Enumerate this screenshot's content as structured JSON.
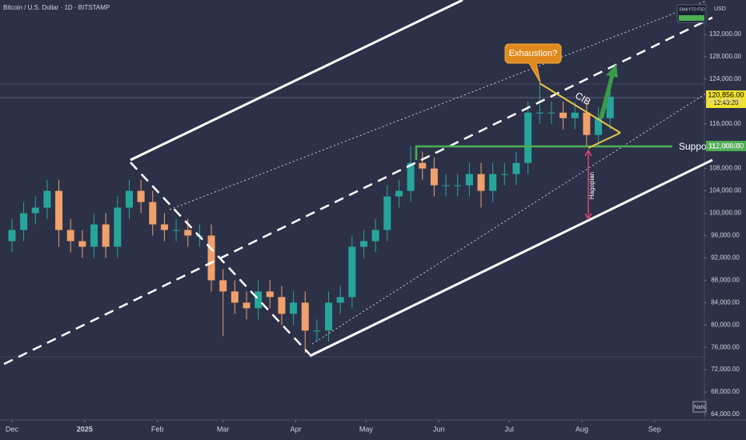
{
  "chart_data": {
    "type": "candlestick",
    "title": "Bitcoin / U.S. Dollar · 1D · BITSTAMP",
    "currency": "USD",
    "indicators": [
      "EMA",
      "YTD",
      "F5D"
    ],
    "last_price_label": "12­0,856.00",
    "countdown": "12:43:20",
    "support_price_label": "112,000.00",
    "nan_label": "NaN",
    "annotations": {
      "exhaustion": "Exhaustion?",
      "cib": "CIB",
      "support": "Support",
      "hagopian": "Hagopian"
    },
    "x": [
      0,
      5,
      10,
      15,
      20,
      25,
      30,
      35,
      40,
      45,
      50,
      55,
      60,
      65,
      70,
      75,
      80,
      85,
      90,
      95,
      100,
      105,
      110,
      115,
      120,
      125,
      130,
      135,
      140,
      145,
      150,
      155,
      160,
      165,
      170,
      175,
      180,
      185,
      190,
      195,
      200,
      205,
      210,
      215,
      220,
      225,
      230,
      235,
      240,
      245,
      250,
      255
    ],
    "open": [
      95000,
      97000,
      100000,
      101000,
      104000,
      97000,
      95000,
      94000,
      98000,
      94000,
      101000,
      104000,
      102000,
      98000,
      97000,
      97000,
      96000,
      96000,
      88000,
      86000,
      84000,
      83000,
      86000,
      85000,
      82000,
      84000,
      79000,
      79000,
      84000,
      85000,
      94000,
      95000,
      97000,
      103000,
      104000,
      109000,
      108000,
      105000,
      105000,
      105000,
      107000,
      104000,
      107000,
      107000,
      109000,
      118000,
      118000,
      118000,
      117000,
      118000,
      114000,
      117000
    ],
    "high": [
      99000,
      102000,
      103000,
      106000,
      106000,
      99000,
      97000,
      100000,
      100000,
      103000,
      106000,
      106000,
      104000,
      100000,
      99000,
      99000,
      98000,
      98000,
      90000,
      88000,
      86000,
      88000,
      88000,
      87000,
      86000,
      86000,
      81000,
      86000,
      87000,
      96000,
      97000,
      99000,
      105000,
      106000,
      112000,
      111000,
      110000,
      107000,
      107000,
      109000,
      109000,
      109000,
      109000,
      111000,
      120000,
      123000,
      120000,
      120000,
      120000,
      120000,
      119000,
      122000
    ],
    "low": [
      93000,
      95000,
      98000,
      99000,
      94000,
      93000,
      92000,
      92000,
      92000,
      92000,
      99000,
      100000,
      96000,
      95000,
      95000,
      94000,
      94000,
      86000,
      78000,
      82000,
      81000,
      81000,
      83000,
      80000,
      80000,
      75000,
      77000,
      77000,
      82000,
      83000,
      92000,
      93000,
      95000,
      101000,
      102000,
      106000,
      103000,
      103000,
      103000,
      103000,
      101000,
      102000,
      105000,
      105000,
      107000,
      116000,
      116000,
      115000,
      115000,
      112000,
      112000,
      115000
    ],
    "close": [
      97000,
      100000,
      101000,
      104000,
      97000,
      95000,
      94000,
      98000,
      94000,
      101000,
      104000,
      102000,
      98000,
      97000,
      97000,
      96000,
      96000,
      88000,
      86000,
      84000,
      83000,
      86000,
      85000,
      82000,
      84000,
      79000,
      79000,
      84000,
      85000,
      94000,
      95000,
      97000,
      103000,
      104000,
      109000,
      108000,
      105000,
      105000,
      105000,
      107000,
      104000,
      107000,
      107000,
      109000,
      118000,
      118000,
      118000,
      117000,
      118000,
      114000,
      117000,
      120856
    ],
    "up_color": "#26a69a",
    "down_color": "#f0a06a",
    "xlim": [
      -5.1,
      295.2
    ],
    "xticks": [
      {
        "value": 0,
        "label": "Dec"
      },
      {
        "value": 31,
        "label": "2025"
      },
      {
        "value": 62,
        "label": "Feb"
      },
      {
        "value": 90,
        "label": "Mar"
      },
      {
        "value": 121,
        "label": "Apr"
      },
      {
        "value": 151,
        "label": "May"
      },
      {
        "value": 182,
        "label": "Jun"
      },
      {
        "value": 212,
        "label": "Jul"
      },
      {
        "value": 243,
        "label": "Aug"
      },
      {
        "value": 274,
        "label": "Sep"
      }
    ],
    "ylim": [
      63000,
      138150
    ],
    "yticks": [
      {
        "value": 64000,
        "label": "64,000.00"
      },
      {
        "value": 68000,
        "label": "68,000.00"
      },
      {
        "value": 72000,
        "label": "72,000.00"
      },
      {
        "value": 76000,
        "label": "76,000.00"
      },
      {
        "value": 80000,
        "label": "80,000.00"
      },
      {
        "value": 84000,
        "label": "84,000.00"
      },
      {
        "value": 88000,
        "label": "88,000.00"
      },
      {
        "value": 92000,
        "label": "92,000.00"
      },
      {
        "value": 96000,
        "label": "96,000.00"
      },
      {
        "value": 100000,
        "label": "100,000.00"
      },
      {
        "value": 104000,
        "label": "104,000.00"
      },
      {
        "value": 108000,
        "label": "108,000.00"
      },
      {
        "value": 112000,
        "label": "112,000.00"
      },
      {
        "value": 116000,
        "label": "116,000.00"
      },
      {
        "value": 120000,
        "label": "120,000.00"
      },
      {
        "value": 124000,
        "label": "124,000.00"
      },
      {
        "value": 128000,
        "label": "128,000.00"
      },
      {
        "value": 132000,
        "label": "132,000.00"
      }
    ],
    "grid": false
  }
}
